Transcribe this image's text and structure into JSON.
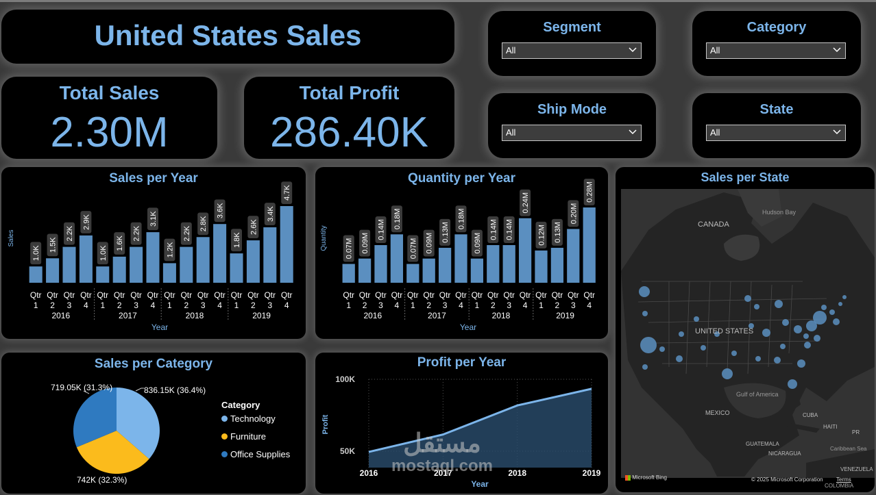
{
  "header": {
    "title": "United States Sales"
  },
  "kpis": {
    "total_sales": {
      "label": "Total Sales",
      "value": "2.30M"
    },
    "total_profit": {
      "label": "Total Profit",
      "value": "286.40K"
    }
  },
  "slicers": {
    "segment": {
      "label": "Segment",
      "value": "All"
    },
    "category": {
      "label": "Category",
      "value": "All"
    },
    "ship_mode": {
      "label": "Ship Mode",
      "value": "All"
    },
    "state": {
      "label": "State",
      "value": "All"
    }
  },
  "colors": {
    "accent": "#7cb5ea",
    "bar": "#5b8fc0",
    "pie_tech": "#7cb5ea",
    "pie_furn": "#fbbb1c",
    "pie_office": "#2f7ac0"
  },
  "sales_chart": {
    "title": "Sales per Year",
    "ylabel": "Sales",
    "xlabel": "Year"
  },
  "quantity_chart": {
    "title": "Quantity per Year",
    "ylabel": "Quantity",
    "xlabel": "Year"
  },
  "category_chart": {
    "title": "Sales per Category",
    "legend_title": "Category"
  },
  "profit_chart": {
    "title": "Profit per Year",
    "ylabel": "Profit",
    "xlabel": "Year",
    "y_ticks": [
      "100K",
      "50K"
    ]
  },
  "map": {
    "title": "Sales per State",
    "labels": {
      "canada": "CANADA",
      "hudson_bay": "Hudson Bay",
      "usa": "UNITED STATES",
      "gulf": "Gulf of America",
      "mexico": "MEXICO",
      "cuba": "CUBA",
      "haiti": "HAITI",
      "pr": "PR",
      "caribbean": "Caribbean Sea",
      "guatemala": "GUATEMALA",
      "nicaragua": "NICARAGUA",
      "venezuela": "VENEZUELA",
      "colombia": "COLOMBIA"
    },
    "brand": "Microsoft Bing",
    "copyright": "© 2025 Microsoft Corporation",
    "terms": "Terms"
  },
  "watermark": {
    "text": "mostaql.com",
    "arabic": "مستقل"
  },
  "chart_data": [
    {
      "type": "bar",
      "title": "Sales per Year",
      "xlabel": "Year",
      "ylabel": "Sales",
      "years": [
        "2016",
        "2017",
        "2018",
        "2019"
      ],
      "categories": [
        "Qtr 1",
        "Qtr 2",
        "Qtr 3",
        "Qtr 4",
        "Qtr 1",
        "Qtr 2",
        "Qtr 3",
        "Qtr 4",
        "Qtr 1",
        "Qtr 2",
        "Qtr 3",
        "Qtr 4",
        "Qtr 1",
        "Qtr 2",
        "Qtr 3",
        "Qtr 4"
      ],
      "values": [
        1.0,
        1.5,
        2.2,
        2.9,
        1.0,
        1.6,
        2.2,
        3.1,
        1.2,
        2.2,
        2.8,
        3.6,
        1.8,
        2.6,
        3.4,
        4.7
      ],
      "labels": [
        "1.0K",
        "1.5K",
        "2.2K",
        "2.9K",
        "1.0K",
        "1.6K",
        "2.2K",
        "3.1K",
        "1.2K",
        "2.2K",
        "2.8K",
        "3.6K",
        "1.8K",
        "2.6K",
        "3.4K",
        "4.7K"
      ]
    },
    {
      "type": "bar",
      "title": "Quantity per Year",
      "xlabel": "Year",
      "ylabel": "Quantity",
      "years": [
        "2016",
        "2017",
        "2018",
        "2019"
      ],
      "categories": [
        "Qtr 1",
        "Qtr 2",
        "Qtr 3",
        "Qtr 4",
        "Qtr 1",
        "Qtr 2",
        "Qtr 3",
        "Qtr 4",
        "Qtr 1",
        "Qtr 2",
        "Qtr 3",
        "Qtr 4",
        "Qtr 1",
        "Qtr 2",
        "Qtr 3",
        "Qtr 4"
      ],
      "values": [
        0.07,
        0.09,
        0.14,
        0.18,
        0.07,
        0.09,
        0.13,
        0.18,
        0.09,
        0.14,
        0.14,
        0.24,
        0.12,
        0.13,
        0.2,
        0.28
      ],
      "labels": [
        "0.07M",
        "0.09M",
        "0.14M",
        "0.18M",
        "0.07M",
        "0.09M",
        "0.13M",
        "0.18M",
        "0.09M",
        "0.14M",
        "0.14M",
        "0.24M",
        "0.12M",
        "0.13M",
        "0.20M",
        "0.28M"
      ]
    },
    {
      "type": "pie",
      "title": "Sales per Category",
      "legend_title": "Category",
      "slices": [
        {
          "name": "Technology",
          "value": 836.15,
          "label": "836.15K (36.4%)"
        },
        {
          "name": "Furniture",
          "value": 742.0,
          "label": "742K (32.3%)"
        },
        {
          "name": "Office Supplies",
          "value": 719.05,
          "label": "719.05K (31.3%)"
        }
      ]
    },
    {
      "type": "area",
      "title": "Profit per Year",
      "xlabel": "Year",
      "ylabel": "Profit",
      "x": [
        "2016",
        "2017",
        "2018",
        "2019"
      ],
      "values": [
        49.5,
        61.6,
        81.8,
        93.4
      ],
      "y_ticks": [
        "100K",
        "50K"
      ]
    }
  ]
}
